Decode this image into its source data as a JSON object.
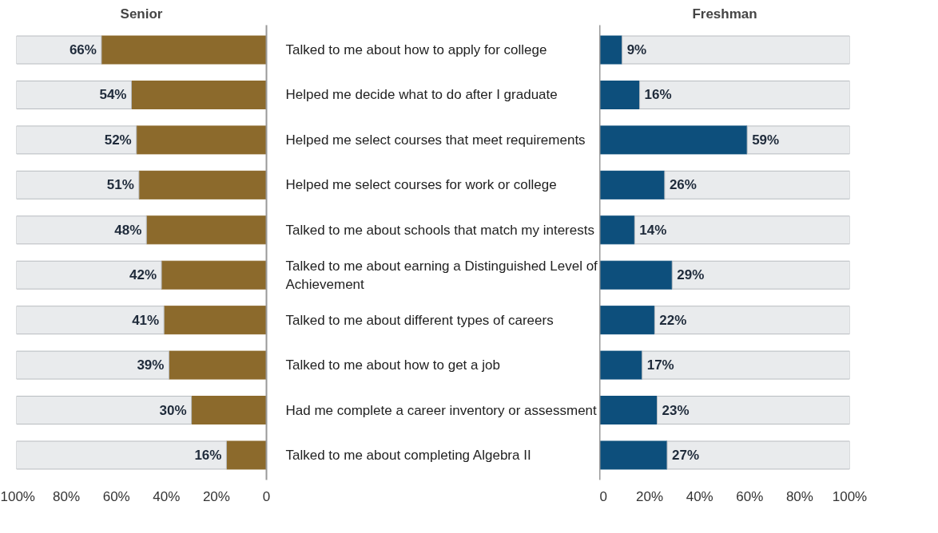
{
  "chart_data": [
    {
      "type": "bar",
      "orientation": "horizontal",
      "stacked": true,
      "title": "Senior",
      "categories": [
        "Talked to me about how to apply for college",
        "Helped me decide what to do after I graduate",
        "Helped me select courses that meet requirements",
        "Helped me select courses for work or college",
        "Talked to me about schools that match my interests",
        "Talked to me about earning a Distinguished Level of Achievement",
        "Talked to me about different types of careers",
        "Talked to me about how to get a job",
        "Had me complete a career inventory or assessment",
        "Talked to me about completing Algebra II"
      ],
      "series": [
        {
          "color": "#8c6a2c",
          "values": [
            66,
            54,
            52,
            51,
            48,
            42,
            41,
            39,
            30,
            16
          ],
          "value_labels": [
            "66%",
            "54%",
            "52%",
            "51%",
            "48%",
            "42%",
            "41%",
            "39%",
            "30%",
            "16%"
          ]
        },
        {
          "color": "#e9ebed",
          "values": [
            34,
            46,
            48,
            49,
            52,
            58,
            59,
            61,
            70,
            84
          ]
        }
      ],
      "xlim": [
        100,
        0
      ],
      "xticks": [
        {
          "value": 100,
          "label": "100%"
        },
        {
          "value": 80,
          "label": "80%"
        },
        {
          "value": 60,
          "label": "60%"
        },
        {
          "value": 40,
          "label": "40%"
        },
        {
          "value": 20,
          "label": "20%"
        },
        0
      ]
    },
    {
      "type": "bar",
      "orientation": "horizontal",
      "stacked": true,
      "title": "Freshman",
      "tick_labels": "x",
      "categories": [
        "Talked to me about how to apply for college",
        "Helped me decide what to do after I graduate",
        "Helped me select courses that meet requirements",
        "Helped me select courses for work or college",
        "Talked to me about schools that match my interests",
        "Talked to me about earning a Distinguished Level of Achievement",
        "Talked to me about different types of careers",
        "Talked to me about how to get a job",
        "Had me complete a career inventory or assessment",
        "Talked to me about completing Algebra II"
      ],
      "series": [
        {
          "color": "#0d4f7c",
          "values": [
            9,
            16,
            59,
            26,
            14,
            29,
            22,
            17,
            23,
            27
          ],
          "value_labels": [
            "9%",
            "16%",
            "59%",
            "26%",
            "14%",
            "29%",
            "22%",
            "17%",
            "23%",
            "27%"
          ]
        },
        {
          "color": "#e9ebed",
          "values": [
            91,
            84,
            41,
            74,
            86,
            71,
            78,
            83,
            77,
            73
          ]
        }
      ],
      "xlim": [
        0,
        100
      ],
      "xticks": [
        0,
        {
          "value": 20,
          "label": "20%"
        },
        {
          "value": 40,
          "label": "40%"
        },
        {
          "value": 60,
          "label": "60%"
        },
        {
          "value": 80,
          "label": "80%"
        },
        {
          "value": 100,
          "label": "100%"
        }
      ]
    }
  ]
}
